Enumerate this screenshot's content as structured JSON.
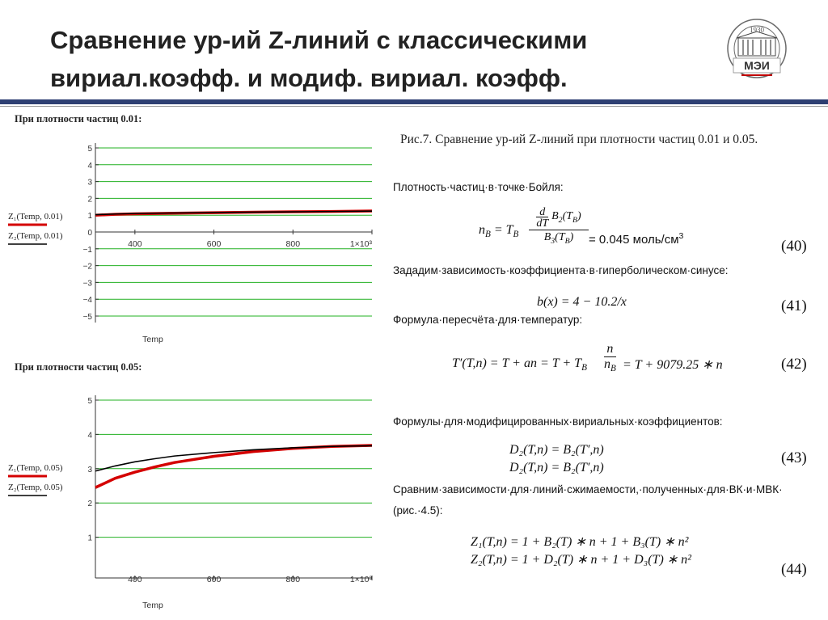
{
  "title": "Сравнение ур-ий Z-линий с классическими вириал.коэфф. и модиф. вириал. коэфф.",
  "logo": {
    "text": "МЭИ",
    "year": "1930",
    "ring_text": "НАЦИОНАЛЬНЫЙ ИССЛЕДОВАТЕЛЬСКИЙ УНИВЕРСИТЕТ"
  },
  "figure_caption": "Рис.7. Сравнение ур-ий Z-линий при плотности частиц 0.01 и 0.05.",
  "equations": {
    "boyle_density_label": "Плотность·частиц·в·точке·Бойля:",
    "eq40_text": "= 0.045 моль/см",
    "eq40_num": "(40)",
    "hyperbolic_label": "Зададим·зависимость·коэффициента·в·гиперболическом·синусе:",
    "eq41_text": "b(x) = 4 − 10.2/x",
    "eq41_num": "(41)",
    "recalc_label": "Формула·пересчёта·для·температур:",
    "eq42_left": "T′(T,n) = T + an = T + T",
    "eq42_right": "= T + 9079.25 ∗ n",
    "eq42_num": "(42)",
    "modified_label": "Формулы·для·модифицированных·вириальных·коэффициентов:",
    "eq43_line1": "D₂(T,n) = B₂(T′,n)",
    "eq43_line2": "D₂(T,n) = B₂(T′,n)",
    "eq43_num": "(43)",
    "compare_label_1": "Сравним·зависимости·для·линий·сжимаемости,·полученных·для·ВК·и·МВК·",
    "compare_label_2": "(рис.·4.5):",
    "eq44_line1": "Z₁(T,n) = 1 + B₂(T) ∗ n + 1 + B₃(T) ∗ n²",
    "eq44_line2": "Z₂(T,n) = 1 + D₂(T) ∗ n + 1 + D₃(T) ∗ n²",
    "eq44_num": "(44)"
  },
  "chart_data": [
    {
      "type": "line",
      "title": "При плотности частиц 0.01:",
      "xlabel": "Temp",
      "ylabel": "",
      "xlim": [
        300,
        1000
      ],
      "ylim": [
        -5,
        5
      ],
      "x_ticks": [
        "400",
        "600",
        "800",
        "1×10³"
      ],
      "x_tick_values": [
        400,
        600,
        800,
        1000
      ],
      "y_ticks": [
        5,
        4,
        3,
        2,
        1,
        0,
        -1,
        -2,
        -3,
        -4,
        -5
      ],
      "grid": true,
      "legend_position": "left",
      "series": [
        {
          "name": "Z₁(Temp, 0.01)",
          "color": "#d40000",
          "x": [
            300,
            350,
            400,
            500,
            600,
            700,
            800,
            900,
            1000
          ],
          "y": [
            1.0,
            1.05,
            1.08,
            1.12,
            1.15,
            1.18,
            1.2,
            1.22,
            1.25
          ]
        },
        {
          "name": "Z₂(Temp, 0.01)",
          "color": "#000000",
          "x": [
            300,
            350,
            400,
            500,
            600,
            700,
            800,
            900,
            1000
          ],
          "y": [
            1.03,
            1.07,
            1.1,
            1.13,
            1.16,
            1.18,
            1.2,
            1.22,
            1.24
          ]
        }
      ]
    },
    {
      "type": "line",
      "title": "При плотности частиц 0.05:",
      "xlabel": "Temp",
      "ylabel": "",
      "xlim": [
        300,
        1000
      ],
      "ylim": [
        0,
        5
      ],
      "x_ticks": [
        "400",
        "600",
        "800",
        "1×10³"
      ],
      "x_tick_values": [
        400,
        600,
        800,
        1000
      ],
      "y_ticks": [
        5,
        4,
        3,
        2,
        1
      ],
      "grid": true,
      "legend_position": "left",
      "series": [
        {
          "name": "Z₁(Temp, 0.05)",
          "color": "#d40000",
          "x": [
            300,
            350,
            400,
            450,
            500,
            600,
            700,
            800,
            900,
            1000
          ],
          "y": [
            2.45,
            2.72,
            2.9,
            3.05,
            3.18,
            3.36,
            3.5,
            3.59,
            3.65,
            3.68
          ]
        },
        {
          "name": "Z₂(Temp, 0.05)",
          "color": "#000000",
          "x": [
            300,
            350,
            400,
            450,
            500,
            600,
            700,
            800,
            900,
            1000
          ],
          "y": [
            2.93,
            3.08,
            3.2,
            3.29,
            3.37,
            3.47,
            3.55,
            3.61,
            3.65,
            3.67
          ]
        }
      ]
    }
  ]
}
